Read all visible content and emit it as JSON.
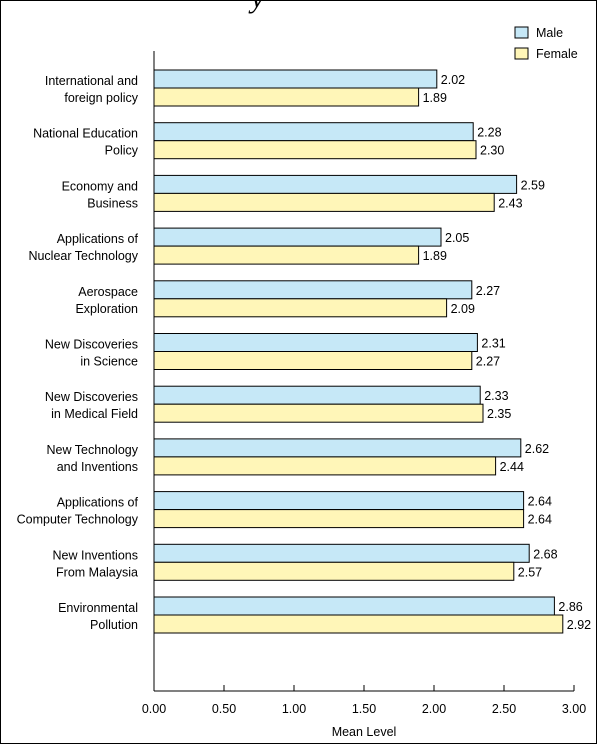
{
  "header": {
    "cut_title": "y"
  },
  "chart_data": {
    "type": "bar",
    "orientation": "horizontal",
    "categories": [
      [
        "International and",
        "foreign policy"
      ],
      [
        "National Education",
        "Policy"
      ],
      [
        "Economy and",
        "Business"
      ],
      [
        "Applications of",
        "Nuclear Technology"
      ],
      [
        "Aerospace",
        "Exploration"
      ],
      [
        "New Discoveries",
        "in Science"
      ],
      [
        "New Discoveries",
        "in Medical Field"
      ],
      [
        "New Technology",
        "and Inventions"
      ],
      [
        "Applications of",
        "Computer Technology"
      ],
      [
        "New Inventions",
        "From Malaysia"
      ],
      [
        "Environmental",
        "Pollution"
      ]
    ],
    "series": [
      {
        "name": "Male",
        "color": "#c6e8f7",
        "values": [
          2.02,
          2.28,
          2.59,
          2.05,
          2.27,
          2.31,
          2.33,
          2.62,
          2.64,
          2.68,
          2.86
        ]
      },
      {
        "name": "Female",
        "color": "#fff6b8",
        "values": [
          1.89,
          2.3,
          2.43,
          1.89,
          2.09,
          2.27,
          2.35,
          2.44,
          2.64,
          2.57,
          2.92
        ]
      }
    ],
    "xlabel": "Mean Level",
    "xlim": [
      0,
      3
    ],
    "xticks": [
      "0.00",
      "0.50",
      "1.00",
      "1.50",
      "2.00",
      "2.50",
      "3.00"
    ],
    "legend_position": "top-right",
    "grid": false
  }
}
